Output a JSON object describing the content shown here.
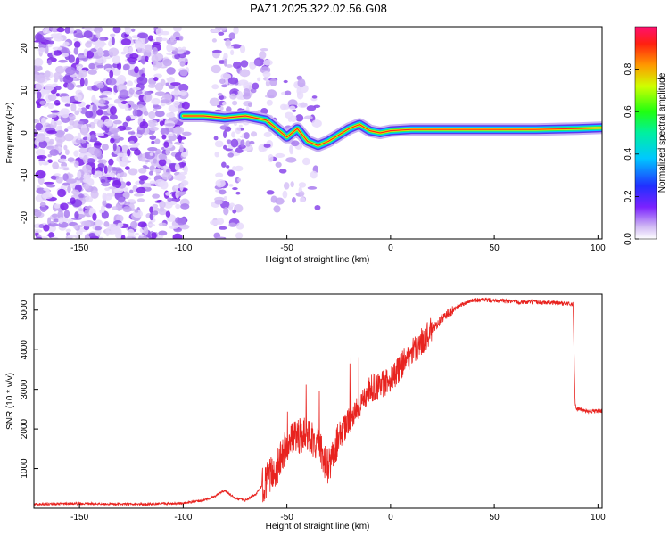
{
  "title": "PAZ1.2025.322.02.56.G08",
  "colors": {
    "snr_line": "#e8231f",
    "spectrogram_blob": "#8a2be2",
    "ridge_core": "#ff2a1a"
  },
  "chart_data": [
    {
      "type": "heatmap",
      "name": "spectrogram",
      "xlabel": "Height of straight line (km)",
      "ylabel": "Frequency (Hz)",
      "xlim": [
        -172,
        102
      ],
      "ylim": [
        -25,
        25
      ],
      "xticks": [
        -150,
        -100,
        -50,
        0,
        50,
        100
      ],
      "yticks": [
        -20,
        -10,
        0,
        10,
        20
      ],
      "colorbar": {
        "label": "Normalized spectral amplitude",
        "range": [
          0,
          1
        ],
        "ticks": [
          0.0,
          0.2,
          0.4,
          0.6,
          0.8
        ],
        "colormap": "rainbow"
      },
      "ridge": {
        "x": [
          -100,
          -90,
          -80,
          -70,
          -60,
          -55,
          -50,
          -45,
          -40,
          -35,
          -30,
          -25,
          -20,
          -15,
          -10,
          -5,
          0,
          10,
          30,
          50,
          70,
          90,
          102
        ],
        "y": [
          4,
          4,
          3.5,
          4,
          3,
          1,
          -1,
          1,
          -2,
          -3,
          -2,
          -0.5,
          1,
          2,
          0.5,
          0,
          0.5,
          0.8,
          0.8,
          0.8,
          0.8,
          1,
          1.2
        ]
      }
    },
    {
      "type": "line",
      "name": "snr",
      "xlabel": "Height of straight line (km)",
      "ylabel": "SNR (10 * v/v)",
      "xlim": [
        -172,
        102
      ],
      "ylim": [
        0,
        5400
      ],
      "xticks": [
        -150,
        -100,
        -50,
        0,
        50,
        100
      ],
      "yticks": [
        1000,
        2000,
        3000,
        4000,
        5000
      ],
      "series": [
        {
          "name": "SNR",
          "x": [
            -172,
            -150,
            -120,
            -100,
            -90,
            -85,
            -80,
            -75,
            -70,
            -65,
            -60,
            -55,
            -50,
            -45,
            -40,
            -35,
            -30,
            -25,
            -20,
            -15,
            -10,
            -5,
            0,
            5,
            10,
            15,
            20,
            25,
            30,
            35,
            40,
            50,
            60,
            70,
            80,
            88,
            89,
            90,
            95,
            102
          ],
          "y": [
            100,
            120,
            100,
            130,
            200,
            300,
            450,
            250,
            200,
            350,
            700,
            1000,
            1600,
            1800,
            1900,
            1600,
            1000,
            1800,
            2200,
            2600,
            3000,
            3100,
            3200,
            3600,
            3900,
            4200,
            4500,
            4800,
            5000,
            5150,
            5250,
            5250,
            5200,
            5200,
            5180,
            5150,
            2600,
            2500,
            2450,
            2450
          ]
        }
      ]
    }
  ]
}
